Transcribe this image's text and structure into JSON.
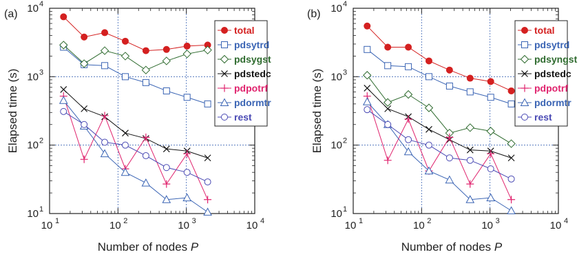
{
  "chart_data": [
    {
      "type": "line",
      "panel": "(a)",
      "xlabel": "Number of nodes",
      "xlabel_var": "P",
      "ylabel": "Elapsed time (s)",
      "xscale": "log",
      "yscale": "log",
      "xlim": [
        10,
        10000
      ],
      "ylim": [
        10,
        10000
      ],
      "xticks": [
        {
          "base": "10",
          "exp": "1"
        },
        {
          "base": "10",
          "exp": "2"
        },
        {
          "base": "10",
          "exp": "3"
        },
        {
          "base": "10",
          "exp": "4"
        }
      ],
      "yticks": [
        {
          "base": "10",
          "exp": "1"
        },
        {
          "base": "10",
          "exp": "2"
        },
        {
          "base": "10",
          "exp": "3"
        },
        {
          "base": "10",
          "exp": "4"
        }
      ],
      "grid": true,
      "legend_position": "top-right",
      "x": [
        16,
        32,
        64,
        128,
        256,
        512,
        1024,
        2048
      ],
      "series": [
        {
          "name": "total",
          "color": "#d42020",
          "marker": "filled-circle",
          "values": [
            7500,
            3800,
            4400,
            3300,
            2400,
            2500,
            2800,
            2900
          ]
        },
        {
          "name": "pdsytrd",
          "color": "#3a64b4",
          "marker": "square",
          "values": [
            2700,
            1500,
            1450,
            1000,
            820,
            620,
            500,
            400
          ]
        },
        {
          "name": "pdsygst",
          "color": "#2f6b2f",
          "marker": "diamond",
          "values": [
            2900,
            1550,
            2400,
            2000,
            1250,
            1700,
            2150,
            2450
          ]
        },
        {
          "name": "pdstedc",
          "color": "#111111",
          "marker": "x",
          "values": [
            650,
            340,
            260,
            150,
            125,
            88,
            82,
            65
          ]
        },
        {
          "name": "pdpotrf",
          "color": "#e0246e",
          "marker": "plus",
          "values": [
            520,
            62,
            270,
            45,
            130,
            27,
            75,
            16
          ]
        },
        {
          "name": "pdormtr",
          "color": "#3a64b4",
          "marker": "triangle",
          "values": [
            450,
            190,
            75,
            40,
            28,
            16,
            17,
            10.5
          ]
        },
        {
          "name": "rest",
          "color": "#4a4ab4",
          "marker": "circle",
          "values": [
            310,
            200,
            110,
            100,
            70,
            47,
            40,
            29
          ]
        }
      ]
    },
    {
      "type": "line",
      "panel": "(b)",
      "xlabel": "Number of nodes",
      "xlabel_var": "P",
      "ylabel": "Elapsed time (s)",
      "xscale": "log",
      "yscale": "log",
      "xlim": [
        10,
        10000
      ],
      "ylim": [
        10,
        10000
      ],
      "xticks": [
        {
          "base": "10",
          "exp": "1"
        },
        {
          "base": "10",
          "exp": "2"
        },
        {
          "base": "10",
          "exp": "3"
        },
        {
          "base": "10",
          "exp": "4"
        }
      ],
      "yticks": [
        {
          "base": "10",
          "exp": "1"
        },
        {
          "base": "10",
          "exp": "2"
        },
        {
          "base": "10",
          "exp": "3"
        },
        {
          "base": "10",
          "exp": "4"
        }
      ],
      "grid": true,
      "legend_position": "top-right",
      "x": [
        16,
        32,
        64,
        128,
        256,
        512,
        1024,
        2048
      ],
      "series": [
        {
          "name": "total",
          "color": "#d42020",
          "marker": "filled-circle",
          "values": [
            5500,
            2700,
            2700,
            1700,
            1250,
            950,
            850,
            620
          ]
        },
        {
          "name": "pdsytrd",
          "color": "#3a64b4",
          "marker": "square",
          "values": [
            2500,
            1450,
            1400,
            1000,
            730,
            600,
            500,
            400
          ]
        },
        {
          "name": "pdsyngst",
          "color": "#2f6b2f",
          "marker": "diamond",
          "values": [
            1050,
            420,
            550,
            350,
            150,
            180,
            160,
            105
          ]
        },
        {
          "name": "pdstedc",
          "color": "#111111",
          "marker": "x",
          "values": [
            680,
            340,
            260,
            170,
            120,
            85,
            82,
            65
          ]
        },
        {
          "name": "pdpotrf",
          "color": "#e0246e",
          "marker": "plus",
          "values": [
            520,
            60,
            240,
            42,
            130,
            27,
            75,
            16
          ]
        },
        {
          "name": "pdormtr",
          "color": "#3a64b4",
          "marker": "triangle",
          "values": [
            430,
            200,
            80,
            42,
            31,
            16,
            17,
            11
          ]
        },
        {
          "name": "rest",
          "color": "#4a4ab4",
          "marker": "circle",
          "values": [
            330,
            200,
            120,
            100,
            65,
            60,
            45,
            32
          ]
        }
      ]
    }
  ]
}
